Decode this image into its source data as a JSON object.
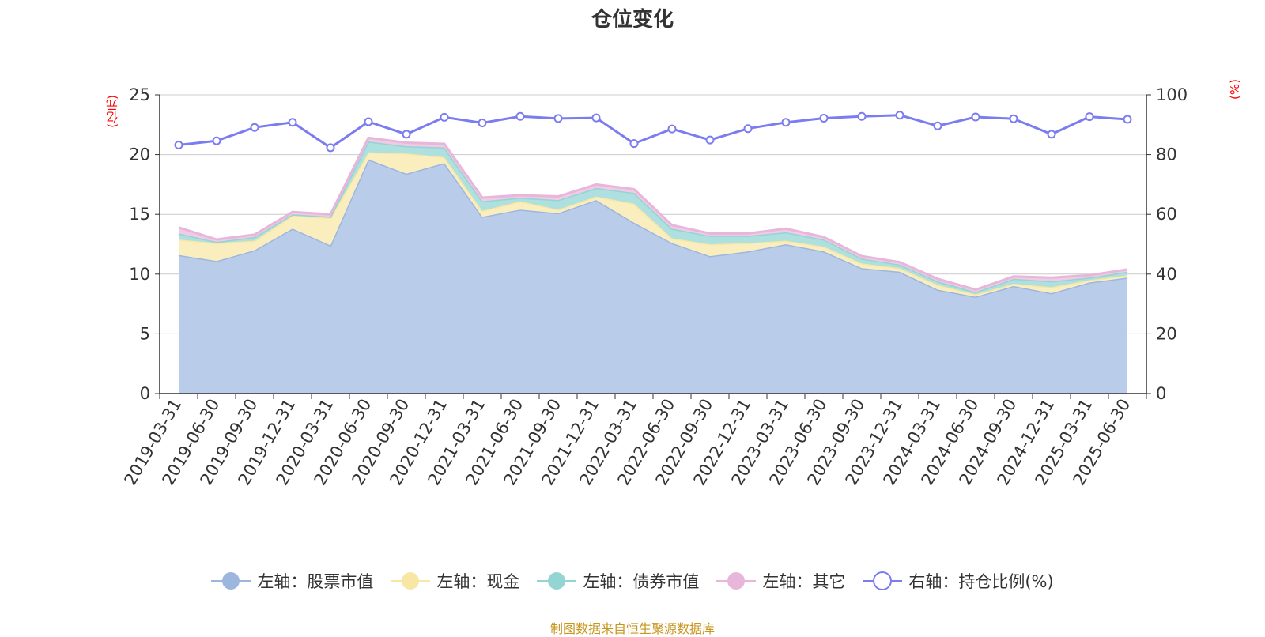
{
  "title": "仓位变化",
  "footer": "制图数据来自恒生聚源数据库",
  "colors": {
    "stock": "#9db6de",
    "stock_fill": "#b9cdeb",
    "cash": "#f7e6a4",
    "cash_fill": "#faeebf",
    "bond": "#94d4d3",
    "bond_fill": "#ade0df",
    "other": "#e8b6da",
    "other_fill": "#efcbe5",
    "ratio": "#7a7cf0",
    "unit": "#ff0000",
    "footer": "#c8961e"
  },
  "chart_data": {
    "type": "area",
    "title": "仓位变化",
    "y_left": {
      "unit_label": "(亿元)",
      "range": [
        0,
        25
      ],
      "ticks": [
        "0",
        "5",
        "10",
        "15",
        "20",
        "25"
      ]
    },
    "y_right": {
      "unit_label": "(%)",
      "range": [
        0,
        100
      ],
      "ticks": [
        "0",
        "20",
        "40",
        "60",
        "80",
        "100"
      ]
    },
    "categories": [
      "2019-03-31",
      "2019-06-30",
      "2019-09-30",
      "2019-12-31",
      "2020-03-31",
      "2020-06-30",
      "2020-09-30",
      "2020-12-31",
      "2021-03-31",
      "2021-06-30",
      "2021-09-30",
      "2021-12-31",
      "2022-03-31",
      "2022-06-30",
      "2022-09-30",
      "2022-12-31",
      "2023-03-31",
      "2023-06-30",
      "2023-09-30",
      "2023-12-31",
      "2024-03-31",
      "2024-06-30",
      "2024-09-30",
      "2024-12-31",
      "2025-03-31",
      "2025-06-30"
    ],
    "stacked": true,
    "series": [
      {
        "name": "左轴：股票市值",
        "axis": "left",
        "values": [
          11.6,
          11.1,
          12.0,
          13.8,
          12.4,
          19.6,
          18.4,
          19.3,
          14.8,
          15.4,
          15.1,
          16.2,
          14.3,
          12.6,
          11.5,
          11.9,
          12.5,
          11.9,
          10.5,
          10.2,
          8.7,
          8.1,
          9.0,
          8.4,
          9.3,
          9.7
        ]
      },
      {
        "name": "左轴：现金",
        "axis": "left",
        "values": [
          1.3,
          1.5,
          0.8,
          1.1,
          2.3,
          0.6,
          1.7,
          0.5,
          0.5,
          0.7,
          0.3,
          0.3,
          1.6,
          0.4,
          1.0,
          0.7,
          0.3,
          0.4,
          0.4,
          0.3,
          0.4,
          0.2,
          0.2,
          0.5,
          0.2,
          0.2
        ]
      },
      {
        "name": "左轴：债券市值",
        "axis": "left",
        "values": [
          0.5,
          0.1,
          0.3,
          0.1,
          0.1,
          0.9,
          0.6,
          0.8,
          0.8,
          0.3,
          0.8,
          0.7,
          0.9,
          0.8,
          0.7,
          0.6,
          0.7,
          0.6,
          0.4,
          0.3,
          0.3,
          0.2,
          0.4,
          0.5,
          0.2,
          0.3
        ]
      },
      {
        "name": "左轴：其它",
        "axis": "left",
        "values": [
          0.5,
          0.2,
          0.2,
          0.2,
          0.2,
          0.3,
          0.3,
          0.3,
          0.3,
          0.2,
          0.3,
          0.3,
          0.3,
          0.3,
          0.2,
          0.2,
          0.3,
          0.2,
          0.2,
          0.2,
          0.2,
          0.2,
          0.2,
          0.3,
          0.2,
          0.2
        ]
      },
      {
        "name": "右轴：持仓比例(%)",
        "axis": "right",
        "type": "line",
        "values": [
          83.2,
          84.6,
          89.1,
          90.8,
          82.3,
          91.0,
          86.8,
          92.5,
          90.6,
          92.8,
          92.1,
          92.3,
          83.7,
          88.6,
          84.9,
          88.7,
          90.8,
          92.2,
          92.8,
          93.2,
          89.6,
          92.6,
          92.0,
          86.8,
          92.7,
          91.8
        ]
      }
    ]
  }
}
